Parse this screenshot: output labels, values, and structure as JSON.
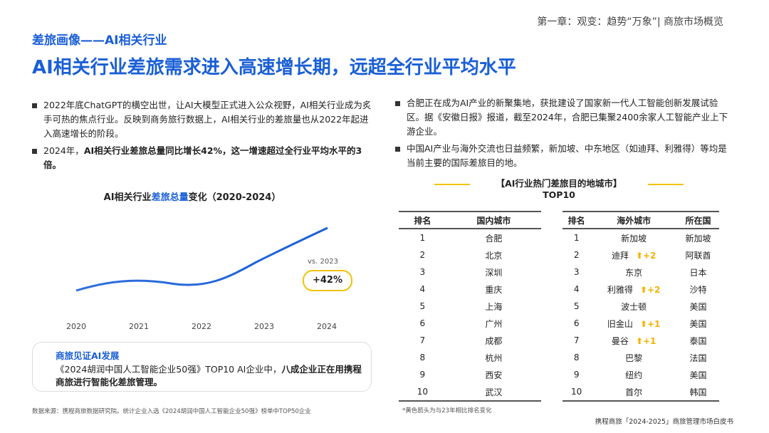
{
  "header": {
    "chapter": "第一章：观变：趋势“万象”| 商旅市场概览",
    "section": "差旅画像——AI相关行业",
    "title": "AI相关行业差旅需求进入高速增长期，远超全行业平均水平"
  },
  "left_bullets": [
    {
      "plain": "2022年底ChatGPT的横空出世，让AI大模型正式进入公众视野，AI相关行业成为炙手可热的焦点行业。反映到商务旅行数据上，AI相关行业的差旅量也从2022年起进入高速增长的阶段。"
    },
    {
      "plain": "2024年，",
      "bold": "AI相关行业差旅总量同比增长42%，这一增速超过全行业平均水平的3倍。"
    }
  ],
  "chart": {
    "title": [
      "AI相关行业",
      "差旅总量",
      "变化（2020-2024）"
    ],
    "categories": [
      "2020",
      "2021",
      "2022",
      "2023",
      "2024"
    ],
    "callout_note": "vs. 2023",
    "callout": "+42%"
  },
  "insight": {
    "title": "商旅见证AI发展",
    "plain": "《2024胡润中国人工智能企业50强》TOP10 AI企业中，",
    "bold": "八成企业正在用携程商旅进行智能化差旅管理。"
  },
  "source": "数据来源：携程商旅数据研究院。统计企业入选《2024胡润中国人工智能企业50强》榜单中TOP50企业",
  "right_bullets": [
    "合肥正在成为AI产业的新聚集地，获批建设了国家新一代人工智能创新发展试验区。据《安徽日报》报道，截至2024年，合肥已集聚2400余家人工智能产业上下游企业。",
    "中国AI产业与海外交流也日益频繁，新加坡、中东地区（如迪拜、利雅得）等均是当前主要的国际差旅目的地。"
  ],
  "tables": {
    "title": "【AI行业热门差旅目的地城市】",
    "subtitle": "TOP10",
    "domestic": {
      "headers": [
        "排名",
        "国内城市"
      ],
      "rows": [
        [
          "1",
          "合肥"
        ],
        [
          "2",
          "北京"
        ],
        [
          "3",
          "深圳"
        ],
        [
          "4",
          "重庆"
        ],
        [
          "5",
          "上海"
        ],
        [
          "6",
          "广州"
        ],
        [
          "7",
          "成都"
        ],
        [
          "8",
          "杭州"
        ],
        [
          "9",
          "西安"
        ],
        [
          "10",
          "武汉"
        ]
      ]
    },
    "overseas": {
      "headers": [
        "排名",
        "海外城市",
        "所在国"
      ],
      "rows": [
        [
          "1",
          "新加坡",
          "新加坡",
          null
        ],
        [
          "2",
          "迪拜",
          "阿联酋",
          "+2"
        ],
        [
          "3",
          "东京",
          "日本",
          null
        ],
        [
          "4",
          "利雅得",
          "沙特",
          "+2"
        ],
        [
          "5",
          "波士顿",
          "美国",
          null
        ],
        [
          "6",
          "旧金山",
          "美国",
          "+1"
        ],
        [
          "7",
          "曼谷",
          "泰国",
          "+1"
        ],
        [
          "8",
          "巴黎",
          "法国",
          null
        ],
        [
          "9",
          "纽约",
          "美国",
          null
        ],
        [
          "10",
          "首尔",
          "韩国",
          null
        ]
      ]
    },
    "note": "*黄色箭头为与23年相比排名变化"
  },
  "footer": "携程商旅「2024-2025」商旅管理市场白皮书"
}
